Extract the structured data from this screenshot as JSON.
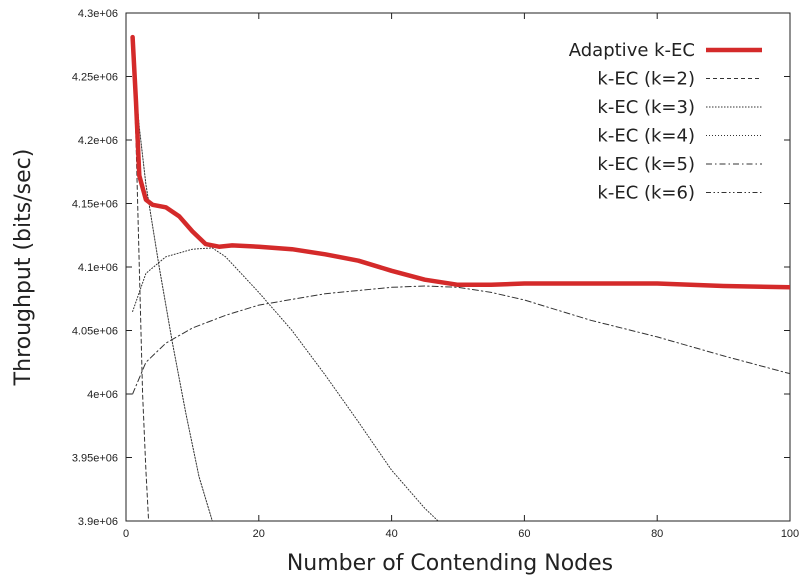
{
  "chart_data": {
    "type": "line",
    "title": "",
    "xlabel": "Number of Contending Nodes",
    "ylabel": "Throughput (bits/sec)",
    "xlim": [
      0,
      100
    ],
    "ylim": [
      3900000,
      4300000
    ],
    "x_ticks": [
      {
        "value": 0,
        "label": "0"
      },
      {
        "value": 20,
        "label": "20"
      },
      {
        "value": 40,
        "label": "40"
      },
      {
        "value": 60,
        "label": "60"
      },
      {
        "value": 80,
        "label": "80"
      },
      {
        "value": 100,
        "label": "100"
      }
    ],
    "y_ticks": [
      {
        "value": 3900000,
        "label": "3.9e+06"
      },
      {
        "value": 3950000,
        "label": "3.95e+06"
      },
      {
        "value": 4000000,
        "label": "4e+06"
      },
      {
        "value": 4050000,
        "label": "4.05e+06"
      },
      {
        "value": 4100000,
        "label": "4.1e+06"
      },
      {
        "value": 4150000,
        "label": "4.15e+06"
      },
      {
        "value": 4200000,
        "label": "4.2e+06"
      },
      {
        "value": 4250000,
        "label": "4.25e+06"
      },
      {
        "value": 4300000,
        "label": "4.3e+06"
      }
    ],
    "grid": false,
    "legend_position": "top-right",
    "series": [
      {
        "name": "Adaptive k-EC",
        "color": "#d42a2a",
        "style": "solid-thick",
        "points": [
          [
            1,
            4281000
          ],
          [
            1.5,
            4230000
          ],
          [
            2,
            4172000
          ],
          [
            3,
            4153000
          ],
          [
            4,
            4149000
          ],
          [
            6,
            4147000
          ],
          [
            8,
            4140000
          ],
          [
            10,
            4128000
          ],
          [
            12,
            4118000
          ],
          [
            14,
            4116000
          ],
          [
            16,
            4117000
          ],
          [
            20,
            4116000
          ],
          [
            25,
            4114000
          ],
          [
            30,
            4110000
          ],
          [
            35,
            4105000
          ],
          [
            40,
            4097000
          ],
          [
            45,
            4090000
          ],
          [
            50,
            4086000
          ],
          [
            55,
            4086000
          ],
          [
            60,
            4087000
          ],
          [
            70,
            4087000
          ],
          [
            80,
            4087000
          ],
          [
            90,
            4085000
          ],
          [
            100,
            4084000
          ]
        ]
      },
      {
        "name": "k-EC (k=2)",
        "color": "#333333",
        "style": "dash",
        "points": [
          [
            1,
            4280000
          ],
          [
            1.5,
            4200000
          ],
          [
            2,
            4100000
          ],
          [
            2.5,
            4000000
          ],
          [
            3,
            3940000
          ],
          [
            3.4,
            3900000
          ]
        ]
      },
      {
        "name": "k-EC (k=3)",
        "color": "#333333",
        "style": "dot-dense",
        "points": [
          [
            1,
            4270000
          ],
          [
            2,
            4210000
          ],
          [
            3,
            4165000
          ],
          [
            5,
            4100000
          ],
          [
            7,
            4040000
          ],
          [
            9,
            3985000
          ],
          [
            11,
            3935000
          ],
          [
            13,
            3900000
          ]
        ]
      },
      {
        "name": "k-EC (k=4)",
        "color": "#333333",
        "style": "dot",
        "points": [
          [
            1,
            4065000
          ],
          [
            3,
            4095000
          ],
          [
            6,
            4108000
          ],
          [
            10,
            4114000
          ],
          [
            13,
            4115000
          ],
          [
            15,
            4108000
          ],
          [
            20,
            4080000
          ],
          [
            25,
            4050000
          ],
          [
            30,
            4015000
          ],
          [
            35,
            3978000
          ],
          [
            40,
            3940000
          ],
          [
            45,
            3910000
          ],
          [
            47,
            3900000
          ]
        ]
      },
      {
        "name": "k-EC (k=5)",
        "color": "#333333",
        "style": "dash-dot",
        "points": [
          [
            1,
            4000000
          ],
          [
            3,
            4025000
          ],
          [
            6,
            4040000
          ],
          [
            10,
            4052000
          ],
          [
            15,
            4062000
          ],
          [
            20,
            4070000
          ],
          [
            30,
            4079000
          ],
          [
            40,
            4084000
          ],
          [
            45,
            4085000
          ],
          [
            50,
            4084000
          ],
          [
            55,
            4080000
          ],
          [
            60,
            4074000
          ],
          [
            70,
            4058000
          ],
          [
            80,
            4045000
          ],
          [
            90,
            4030000
          ],
          [
            100,
            4016000
          ]
        ]
      },
      {
        "name": "k-EC (k=6)",
        "color": "#333333",
        "style": "dash-dot-dot",
        "points": []
      }
    ]
  }
}
